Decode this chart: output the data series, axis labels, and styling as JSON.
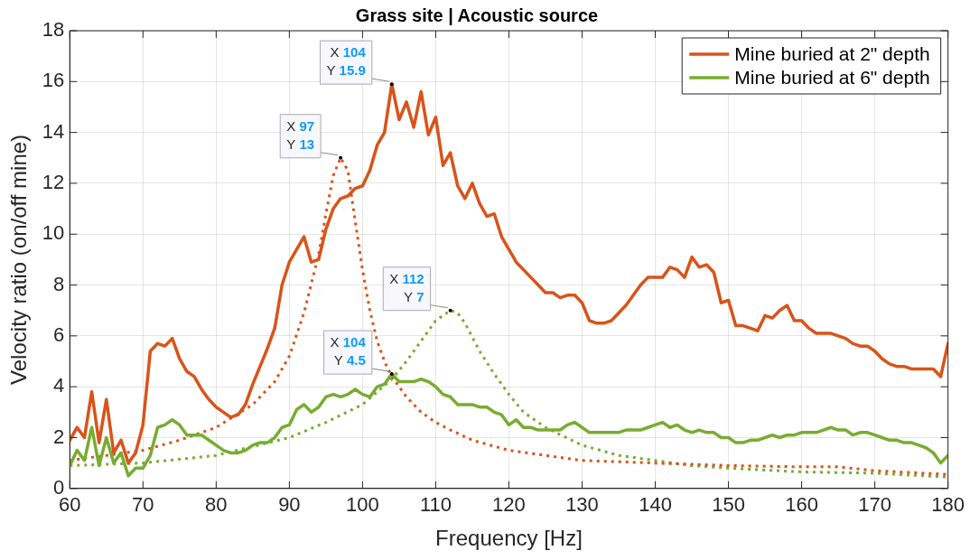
{
  "chart_data": {
    "type": "line",
    "title": "Grass site | Acoustic source",
    "xlabel": "Frequency [Hz]",
    "ylabel": "Velocity ratio (on/off mine)",
    "xlim": [
      60,
      180
    ],
    "xticks": [
      60,
      70,
      80,
      90,
      100,
      110,
      120,
      130,
      140,
      150,
      160,
      170,
      180
    ],
    "ylim": [
      0,
      18
    ],
    "yticks": [
      0,
      2,
      4,
      6,
      8,
      10,
      12,
      14,
      16,
      18
    ],
    "grid": true,
    "legend": "top right",
    "marker": "none",
    "series": [
      {
        "name": "Mine buried at 2\" depth",
        "color": "#d95319",
        "line_style": "solid",
        "x": [
          60,
          61,
          62,
          63,
          64,
          65,
          66,
          67,
          68,
          69,
          70,
          71,
          72,
          73,
          74,
          75,
          76,
          77,
          78,
          79,
          80,
          81,
          82,
          83,
          84,
          85,
          86,
          87,
          88,
          89,
          90,
          91,
          92,
          93,
          94,
          95,
          96,
          97,
          98,
          99,
          100,
          101,
          102,
          103,
          104,
          105,
          106,
          107,
          108,
          109,
          110,
          111,
          112,
          113,
          114,
          115,
          116,
          117,
          118,
          119,
          120,
          121,
          122,
          123,
          124,
          125,
          126,
          127,
          128,
          129,
          130,
          131,
          132,
          133,
          134,
          135,
          136,
          137,
          138,
          139,
          140,
          141,
          142,
          143,
          144,
          145,
          146,
          147,
          148,
          149,
          150,
          151,
          152,
          153,
          154,
          155,
          156,
          157,
          158,
          159,
          160,
          161,
          162,
          163,
          164,
          165,
          166,
          167,
          168,
          169,
          170,
          171,
          172,
          173,
          174,
          175,
          176,
          177,
          178,
          179,
          180
        ],
        "values": [
          1.9,
          2.4,
          2.0,
          3.8,
          1.8,
          3.5,
          1.4,
          1.9,
          1.0,
          1.4,
          2.5,
          5.4,
          5.7,
          5.6,
          5.9,
          5.1,
          4.6,
          4.4,
          3.9,
          3.5,
          3.2,
          3.0,
          2.8,
          2.9,
          3.3,
          4.1,
          4.8,
          5.5,
          6.3,
          8.0,
          8.9,
          9.4,
          9.9,
          8.9,
          9.0,
          10.2,
          11.0,
          11.4,
          11.5,
          11.8,
          11.9,
          12.5,
          13.5,
          14.0,
          15.9,
          14.5,
          15.2,
          14.2,
          15.6,
          13.9,
          14.6,
          12.7,
          13.2,
          11.9,
          11.4,
          12.0,
          11.2,
          10.7,
          10.8,
          9.9,
          9.4,
          8.9,
          8.6,
          8.3,
          8.0,
          7.7,
          7.7,
          7.5,
          7.6,
          7.6,
          7.3,
          6.6,
          6.5,
          6.5,
          6.6,
          6.9,
          7.2,
          7.6,
          8.0,
          8.3,
          8.3,
          8.3,
          8.7,
          8.6,
          8.3,
          9.1,
          8.7,
          8.8,
          8.5,
          7.3,
          7.4,
          6.4,
          6.4,
          6.3,
          6.2,
          6.8,
          6.7,
          7.0,
          7.2,
          6.6,
          6.6,
          6.3,
          6.1,
          6.1,
          6.1,
          6.0,
          5.9,
          5.7,
          5.6,
          5.6,
          5.4,
          5.1,
          4.9,
          4.8,
          4.8,
          4.7,
          4.7,
          4.7,
          4.7,
          4.4,
          5.7
        ]
      },
      {
        "name": "Mine buried at 6\" depth",
        "color": "#77ac30",
        "line_style": "solid",
        "x": [
          60,
          61,
          62,
          63,
          64,
          65,
          66,
          67,
          68,
          69,
          70,
          71,
          72,
          73,
          74,
          75,
          76,
          77,
          78,
          79,
          80,
          81,
          82,
          83,
          84,
          85,
          86,
          87,
          88,
          89,
          90,
          91,
          92,
          93,
          94,
          95,
          96,
          97,
          98,
          99,
          100,
          101,
          102,
          103,
          104,
          105,
          106,
          107,
          108,
          109,
          110,
          111,
          112,
          113,
          114,
          115,
          116,
          117,
          118,
          119,
          120,
          121,
          122,
          123,
          124,
          125,
          126,
          127,
          128,
          129,
          130,
          131,
          132,
          133,
          134,
          135,
          136,
          137,
          138,
          139,
          140,
          141,
          142,
          143,
          144,
          145,
          146,
          147,
          148,
          149,
          150,
          151,
          152,
          153,
          154,
          155,
          156,
          157,
          158,
          159,
          160,
          161,
          162,
          163,
          164,
          165,
          166,
          167,
          168,
          169,
          170,
          171,
          172,
          173,
          174,
          175,
          176,
          177,
          178,
          179,
          180
        ],
        "values": [
          0.9,
          1.5,
          1.1,
          2.4,
          0.9,
          2.0,
          1.0,
          1.4,
          0.5,
          0.8,
          0.8,
          1.3,
          2.4,
          2.5,
          2.7,
          2.5,
          2.1,
          2.1,
          2.1,
          1.9,
          1.7,
          1.5,
          1.4,
          1.4,
          1.5,
          1.7,
          1.8,
          1.8,
          2.0,
          2.4,
          2.5,
          3.1,
          3.3,
          3.0,
          3.2,
          3.6,
          3.7,
          3.6,
          3.7,
          3.9,
          3.7,
          3.6,
          4.0,
          4.1,
          4.5,
          4.2,
          4.2,
          4.2,
          4.3,
          4.2,
          4.0,
          3.7,
          3.6,
          3.3,
          3.3,
          3.3,
          3.2,
          3.2,
          3.0,
          2.9,
          2.5,
          2.7,
          2.4,
          2.4,
          2.3,
          2.3,
          2.3,
          2.3,
          2.5,
          2.6,
          2.4,
          2.2,
          2.2,
          2.2,
          2.2,
          2.2,
          2.3,
          2.3,
          2.3,
          2.4,
          2.5,
          2.6,
          2.4,
          2.5,
          2.3,
          2.2,
          2.3,
          2.2,
          2.2,
          2.0,
          2.0,
          1.8,
          1.8,
          1.9,
          1.9,
          2.0,
          2.1,
          2.0,
          2.1,
          2.1,
          2.2,
          2.2,
          2.2,
          2.3,
          2.4,
          2.3,
          2.3,
          2.1,
          2.2,
          2.2,
          2.1,
          2.0,
          1.9,
          1.9,
          1.8,
          1.8,
          1.7,
          1.6,
          1.4,
          1.0,
          1.3
        ]
      },
      {
        "color": "#d95319",
        "line_style": "dotted",
        "x": [
          60,
          65,
          70,
          75,
          80,
          85,
          88,
          90,
          92,
          94,
          95,
          96,
          97,
          98,
          99,
          100,
          101,
          102,
          103,
          104,
          106,
          108,
          110,
          112,
          115,
          120,
          125,
          130,
          140,
          150,
          160,
          165,
          170,
          180
        ],
        "values": [
          1.1,
          1.3,
          1.5,
          1.9,
          2.4,
          3.3,
          4.2,
          5.2,
          6.9,
          9.2,
          10.8,
          12.3,
          13,
          12.5,
          10.5,
          8.6,
          7.0,
          5.8,
          5.0,
          4.4,
          3.6,
          3.0,
          2.6,
          2.3,
          1.9,
          1.5,
          1.3,
          1.1,
          1.0,
          0.9,
          0.85,
          0.85,
          0.7,
          0.55
        ]
      },
      {
        "color": "#77ac30",
        "line_style": "dotted",
        "x": [
          60,
          70,
          80,
          90,
          95,
          100,
          104,
          106,
          108,
          110,
          112,
          113,
          114,
          116,
          118,
          120,
          122,
          125,
          130,
          135,
          140,
          145,
          150,
          160,
          170,
          180
        ],
        "values": [
          0.9,
          1.0,
          1.3,
          2.0,
          2.6,
          3.3,
          4.3,
          5.0,
          5.8,
          6.6,
          7,
          6.9,
          6.5,
          5.4,
          4.5,
          3.7,
          3.0,
          2.4,
          1.7,
          1.3,
          1.1,
          0.9,
          0.8,
          0.65,
          0.6,
          0.45
        ]
      }
    ],
    "annotations": [
      {
        "text": "X 104\nY 15.9",
        "x": 104,
        "y": 15.9
      },
      {
        "text": "X 97\nY 13",
        "x": 97,
        "y": 13
      },
      {
        "text": "X 112\nY 7",
        "x": 112,
        "y": 7
      },
      {
        "text": "X 104\nY 4.5",
        "x": 104,
        "y": 4.5
      }
    ]
  }
}
